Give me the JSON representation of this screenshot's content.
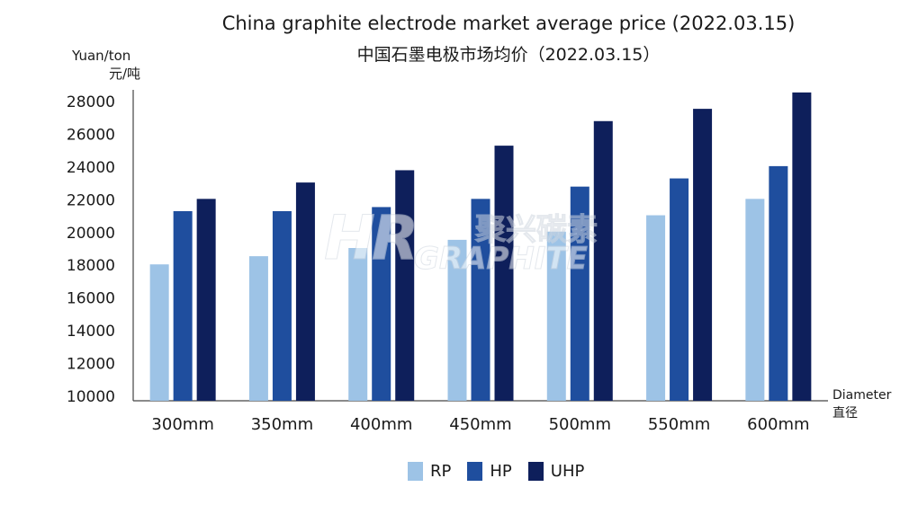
{
  "title_en": "China graphite electrode market average price (2022.03.15)",
  "title_cn": "中国石墨电极市场均价（2022.03.15）",
  "y_unit_en": "Yuan/ton",
  "y_unit_cn": "元/吨",
  "x_unit_en": "Diameter",
  "x_unit_cn": "直径",
  "watermark": {
    "mark": "HR",
    "cn": "聚兴碳素",
    "en": "GRAPHITE"
  },
  "colors": {
    "RP": "#9dc3e6",
    "HP": "#1f4e9e",
    "UHP": "#0e1f5b"
  },
  "chart_data": {
    "type": "bar",
    "categories": [
      "300mm",
      "350mm",
      "400mm",
      "450mm",
      "500mm",
      "550mm",
      "600mm"
    ],
    "series": [
      {
        "name": "RP",
        "values": [
          18000,
          18500,
          19000,
          19500,
          20000,
          21000,
          22000
        ]
      },
      {
        "name": "HP",
        "values": [
          21250,
          21250,
          21500,
          22000,
          22750,
          23250,
          24000
        ]
      },
      {
        "name": "UHP",
        "values": [
          22000,
          23000,
          23750,
          25250,
          26750,
          27500,
          28500
        ]
      }
    ],
    "ylim": [
      10000,
      28000
    ],
    "yticks": [
      10000,
      12000,
      14000,
      16000,
      18000,
      20000,
      22000,
      24000,
      26000,
      28000
    ],
    "legend_position": "bottom",
    "grid": false
  }
}
